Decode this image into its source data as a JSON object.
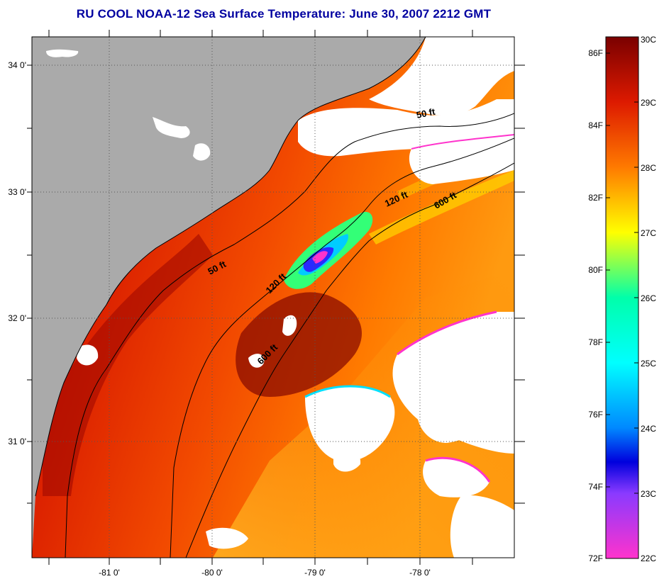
{
  "title": "RU COOL  NOAA-12  Sea Surface Temperature:  June 30, 2007 2212 GMT",
  "map": {
    "lat_labels": [
      "34 0'",
      "33 0'",
      "32 0'",
      "31 0'"
    ],
    "lon_labels": [
      "-81 0'",
      "-80 0'",
      "-79 0'",
      "-78 0'"
    ],
    "contour_labels": [
      "50 ft",
      "120 ft",
      "600 ft",
      "50 ft",
      "120 ft",
      "600 ft"
    ]
  },
  "colorbar": {
    "fahrenheit_labels": [
      "86F",
      "84F",
      "82F",
      "80F",
      "78F",
      "76F",
      "74F",
      "72F"
    ],
    "celsius_labels": [
      "30C",
      "29C",
      "28C",
      "27C",
      "26C",
      "25C",
      "24C",
      "23C",
      "22C"
    ],
    "colors": {
      "c30": "#7a0000",
      "c29": "#dd1a00",
      "c28": "#ff7a00",
      "c27": "#ffff00",
      "c26": "#00ffaa",
      "c25": "#00ffff",
      "c24": "#0088ff",
      "c23": "#0000dd",
      "c22": "#ff33cc"
    }
  },
  "colors": {
    "land": "#aaaaaa",
    "cloud": "#ffffff",
    "title": "#0000a0"
  }
}
